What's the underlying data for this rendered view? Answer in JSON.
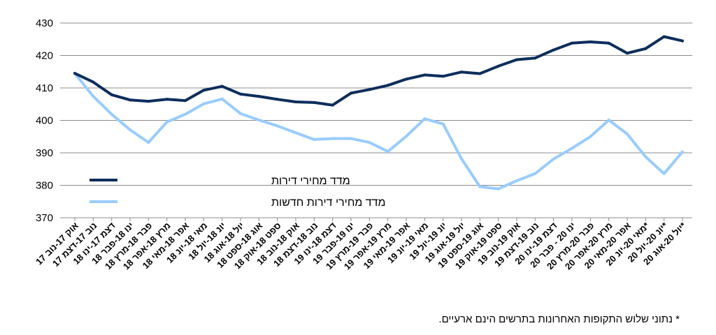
{
  "chart_data": {
    "type": "line",
    "categories": [
      "אוק 17-נוב 17",
      "נוב 17-דצמ 17",
      "דצמ 17-ינו 18",
      "ינו 18-פבר 18",
      "פבר 18-מרץ 18",
      "מרץ 18-אפר 18",
      "אפר 18-מאי 18",
      "מאי 18-יונ 18",
      "יונ 18-יול 18",
      "יול 18-אוג 18",
      "אוג 18-ספט 18",
      "ספט 18-אוק 18",
      "אוק 18-נוב 18",
      "נוב 18-דצמ 18",
      "דצמ 18-ינו 19",
      "ינו 19-פבר 19",
      "פבר 19-מרץ 19",
      "מרץ 19-אפר 19",
      "אפר 19-מאי 19",
      "מאי 19-יונ 19",
      "יונ 19-יול 19",
      "יול 19-אוג 19",
      "אוג 19-ספט 19",
      "ספט 19-אוק 19",
      "אוק 19-נוב 19",
      "נוב 19-דצמ 19",
      "דצמ 19-ינו 20",
      "ינו 20 - פבר 20",
      "פבר 20-מרץ 20",
      "מרץ 20-אפר 20",
      "אפר 20-מאי 20",
      "מאי 20-יונ 20*",
      "יונ 20-יול 20*",
      "יול 20-אוג 20*"
    ],
    "series": [
      {
        "name": "מדד מחירי דירות",
        "color": "#0d2e5c",
        "values": [
          414.5,
          411.8,
          407.9,
          406.3,
          405.9,
          406.5,
          406.1,
          409.3,
          410.5,
          408.1,
          407.4,
          406.5,
          405.7,
          405.5,
          404.7,
          408.4,
          409.5,
          410.8,
          412.7,
          414.0,
          413.6,
          414.9,
          414.4,
          416.7,
          418.7,
          419.2,
          421.7,
          423.8,
          424.2,
          423.8,
          420.7,
          422.1,
          425.8,
          424.5
        ]
      },
      {
        "name": "מדד מחירי דירות חדשות",
        "color": "#99ccff",
        "values": [
          414.5,
          407.4,
          401.9,
          397.1,
          393.2,
          399.5,
          401.9,
          405.1,
          406.6,
          402.1,
          400.1,
          398.3,
          396.2,
          394.1,
          394.4,
          394.4,
          393.2,
          390.4,
          395.1,
          400.5,
          398.9,
          388.2,
          379.6,
          378.9,
          381.4,
          383.6,
          388.1,
          391.4,
          395.0,
          400.1,
          395.8,
          388.8,
          383.6,
          390.3
        ]
      }
    ],
    "ylim": [
      370,
      430
    ],
    "yticks": [
      "370",
      "380",
      "390",
      "400",
      "410",
      "420",
      "430"
    ],
    "grid": true,
    "legend_position": "center-left"
  },
  "footnote": "* נתוני שלוש התקופות האחרונות בתרשים הינם ארעיים."
}
